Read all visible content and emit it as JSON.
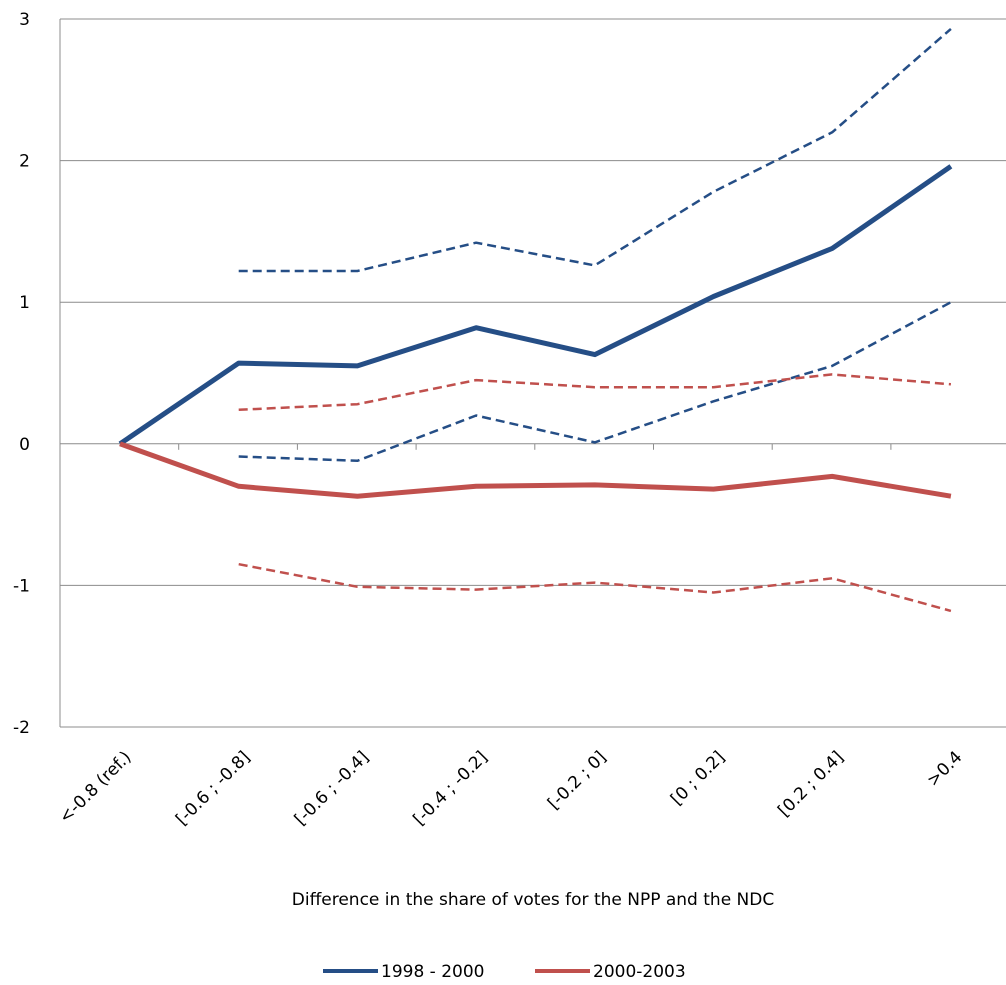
{
  "chart_data": {
    "type": "line",
    "title": "",
    "xlabel": "Difference in the share of votes for the NPP and the NDC",
    "ylabel": "",
    "ylim": [
      -2,
      3
    ],
    "yticks": [
      "3",
      "2",
      "1",
      "0",
      "-1",
      "-2"
    ],
    "ytick_values": [
      3,
      2,
      1,
      0,
      -1,
      -2
    ],
    "categories": [
      "<-0.8 (ref.)",
      "[-0.6 ; -0.8]",
      "[-0.6 ; -0.4]",
      "[-0.4 ; -0.2]",
      "[-0.2 ; 0]",
      "[0 ; 0.2]",
      "[0.2 ; 0.4]",
      ">0.4"
    ],
    "grid": "horizontal",
    "legend_position": "bottom",
    "series": [
      {
        "name": "1998 - 2000",
        "color": "#254E86",
        "style": "solid",
        "legend": true,
        "values": [
          0,
          0.57,
          0.55,
          0.82,
          0.63,
          1.04,
          1.38,
          1.96
        ]
      },
      {
        "name": "2000-2003",
        "color": "#C0504D",
        "style": "solid",
        "legend": true,
        "values": [
          0,
          -0.3,
          -0.37,
          -0.3,
          -0.29,
          -0.32,
          -0.23,
          -0.37
        ]
      },
      {
        "color": "#254E86",
        "style": "dashed",
        "legend": false,
        "values": [
          null,
          1.22,
          1.22,
          1.42,
          1.26,
          1.78,
          2.2,
          2.93
        ]
      },
      {
        "color": "#254E86",
        "style": "dashed",
        "legend": false,
        "values": [
          null,
          -0.09,
          -0.12,
          0.2,
          0.01,
          0.3,
          0.55,
          1.0
        ]
      },
      {
        "color": "#C0504D",
        "style": "dashed",
        "legend": false,
        "values": [
          null,
          0.24,
          0.28,
          0.45,
          0.4,
          0.4,
          0.49,
          0.42
        ]
      },
      {
        "color": "#C0504D",
        "style": "dashed",
        "legend": false,
        "values": [
          null,
          -0.85,
          -1.01,
          -1.03,
          -0.98,
          -1.05,
          -0.95,
          -1.18
        ]
      }
    ]
  }
}
